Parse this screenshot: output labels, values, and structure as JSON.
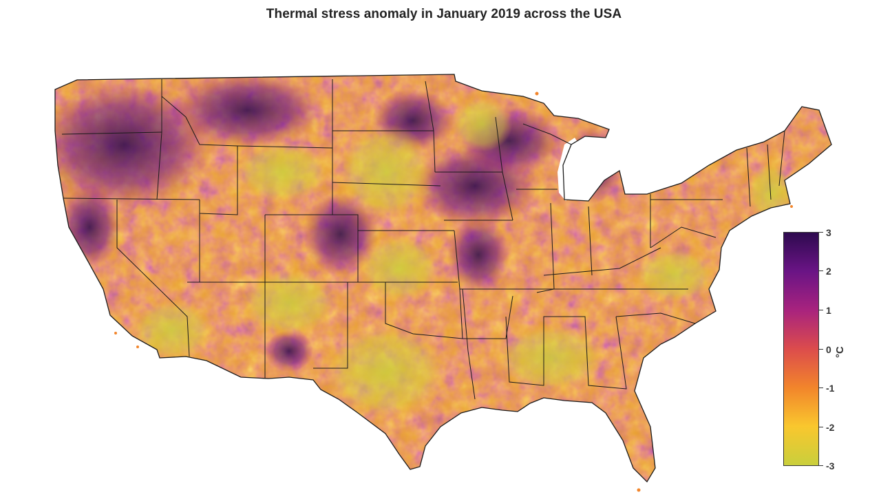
{
  "title": "Thermal stress anomaly in January 2019 across the USA",
  "map": {
    "region": "contiguous-usa",
    "variable": "thermal stress anomaly",
    "period": "January 2019",
    "colormap": "plasma-like (dark purple high, yellow low)"
  },
  "colorbar": {
    "unit": "°C",
    "min": -3,
    "max": 3,
    "ticks": [
      "3",
      "2",
      "1",
      "0",
      "-1",
      "-2",
      "-3"
    ],
    "stops": [
      "#2e0a4f",
      "#6a1485",
      "#a8237e",
      "#dc4c4c",
      "#f2852b",
      "#f9c72e",
      "#c9cf3c"
    ]
  }
}
